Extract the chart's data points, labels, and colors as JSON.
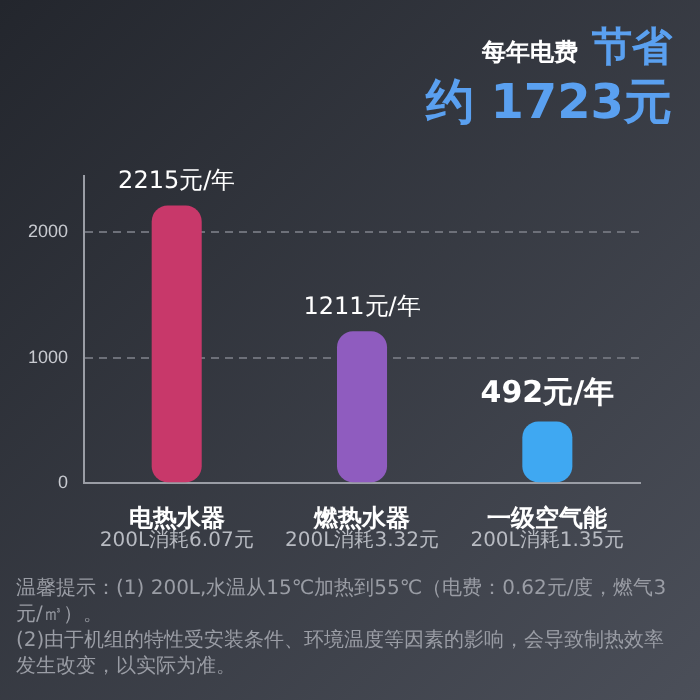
{
  "chart_data": {
    "type": "bar",
    "title": "每年电费 节省",
    "subtitle": "约 1723元",
    "categories": [
      "电热水器",
      "燃热水器",
      "一级空气能"
    ],
    "values": [
      2215,
      1211,
      492
    ],
    "colors": [
      "#c8386a",
      "#8f5cbf",
      "#3fa8f2"
    ],
    "value_labels": [
      "2215元/年",
      "1211元/年",
      "492元/年"
    ],
    "ylim": [
      0,
      2450
    ],
    "yticks": [
      0,
      1000,
      2000
    ],
    "grid": "y",
    "legend": false,
    "annotations": [
      "200L消耗6.07元",
      "200L消耗3.32元",
      "200L消耗1.35元",
      "温馨提示：(1) 200L,水温从15℃加热到55℃（电费：0.62元/度，燃气3元/㎥）。",
      "(2)由于机组的特性受安装条件、环境温度等因素的影响，会导致制热效率发生改变，以实际为准。"
    ]
  }
}
